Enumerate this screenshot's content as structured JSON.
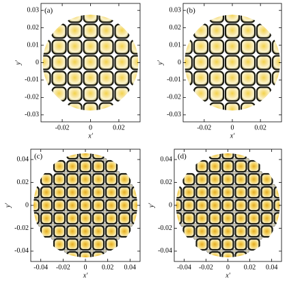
{
  "chart_data": [
    {
      "type": "image",
      "panel_label": "(a)",
      "xlabel": "x'",
      "ylabel": "y'",
      "xlim": [
        -0.035,
        0.035
      ],
      "ylim": [
        -0.034,
        0.034
      ],
      "xticks": [
        -0.02,
        0,
        0.02
      ],
      "yticks": [
        -0.03,
        -0.02,
        -0.01,
        0,
        0.01,
        0.02,
        0.03
      ]
    },
    {
      "type": "image",
      "panel_label": "(b)",
      "xlabel": "x'",
      "ylabel": "y'",
      "xlim": [
        -0.035,
        0.035
      ],
      "ylim": [
        -0.034,
        0.034
      ],
      "xticks": [
        -0.02,
        0,
        0.02
      ],
      "yticks": [
        -0.03,
        -0.02,
        -0.01,
        0,
        0.01,
        0.02,
        0.03
      ]
    },
    {
      "type": "image",
      "panel_label": "(c)",
      "xlabel": "x'",
      "ylabel": "y'",
      "xlim": [
        -0.049,
        0.049
      ],
      "ylim": [
        -0.049,
        0.049
      ],
      "xticks": [
        -0.04,
        -0.02,
        0,
        0.02,
        0.04
      ],
      "yticks": [
        -0.04,
        -0.02,
        0,
        0.02,
        0.04
      ]
    },
    {
      "type": "image",
      "panel_label": "(d)",
      "xlabel": "x'",
      "ylabel": "y'",
      "xlim": [
        -0.049,
        0.049
      ],
      "ylim": [
        -0.049,
        0.049
      ],
      "xticks": [
        -0.04,
        -0.02,
        0,
        0.02,
        0.04
      ],
      "yticks": [
        -0.04,
        -0.02,
        0,
        0.02,
        0.04
      ]
    }
  ]
}
